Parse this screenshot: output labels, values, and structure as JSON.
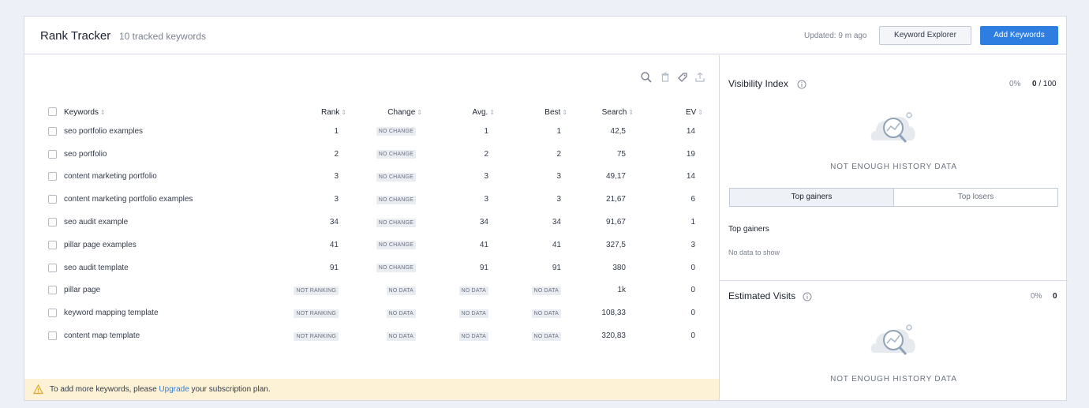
{
  "header": {
    "title": "Rank Tracker",
    "subtitle": "10 tracked keywords",
    "updated": "Updated: 9 m ago",
    "explorer_label": "Keyword Explorer",
    "add_label": "Add Keywords"
  },
  "toolbar": {
    "icons": [
      "search-icon",
      "trash-icon",
      "tag-icon",
      "export-icon"
    ]
  },
  "table": {
    "columns": [
      "Keywords",
      "Rank",
      "Change",
      "Avg.",
      "Best",
      "Search",
      "EV"
    ],
    "rows": [
      {
        "keyword": "seo portfolio examples",
        "rank": "1",
        "change": "NO CHANGE",
        "avg": "1",
        "best": "1",
        "search": "42,5",
        "ev": "14"
      },
      {
        "keyword": "seo portfolio",
        "rank": "2",
        "change": "NO CHANGE",
        "avg": "2",
        "best": "2",
        "search": "75",
        "ev": "19"
      },
      {
        "keyword": "content marketing portfolio",
        "rank": "3",
        "change": "NO CHANGE",
        "avg": "3",
        "best": "3",
        "search": "49,17",
        "ev": "14"
      },
      {
        "keyword": "content marketing portfolio examples",
        "rank": "3",
        "change": "NO CHANGE",
        "avg": "3",
        "best": "3",
        "search": "21,67",
        "ev": "6"
      },
      {
        "keyword": "seo audit example",
        "rank": "34",
        "change": "NO CHANGE",
        "avg": "34",
        "best": "34",
        "search": "91,67",
        "ev": "1"
      },
      {
        "keyword": "pillar page examples",
        "rank": "41",
        "change": "NO CHANGE",
        "avg": "41",
        "best": "41",
        "search": "327,5",
        "ev": "3"
      },
      {
        "keyword": "seo audit template",
        "rank": "91",
        "change": "NO CHANGE",
        "avg": "91",
        "best": "91",
        "search": "380",
        "ev": "0"
      },
      {
        "keyword": "pillar page",
        "rank": "NOT RANKING",
        "change": "NO DATA",
        "avg": "NO DATA",
        "best": "NO DATA",
        "search": "1k",
        "ev": "0"
      },
      {
        "keyword": "keyword mapping template",
        "rank": "NOT RANKING",
        "change": "NO DATA",
        "avg": "NO DATA",
        "best": "NO DATA",
        "search": "108,33",
        "ev": "0"
      },
      {
        "keyword": "content map template",
        "rank": "NOT RANKING",
        "change": "NO DATA",
        "avg": "NO DATA",
        "best": "NO DATA",
        "search": "320,83",
        "ev": "0"
      }
    ]
  },
  "notice": {
    "before": "To add more keywords, please ",
    "link": "Upgrade",
    "after": " your subscription plan."
  },
  "visibility": {
    "title": "Visibility Index",
    "pct": "0%",
    "value": "0",
    "max": " / 100",
    "empty_text": "NOT ENOUGH HISTORY DATA"
  },
  "movers": {
    "tab_gainers": "Top gainers",
    "tab_losers": "Top losers",
    "section_title": "Top gainers",
    "empty": "No data to show"
  },
  "visits": {
    "title": "Estimated Visits",
    "pct": "0%",
    "value": "0",
    "empty_text": "NOT ENOUGH HISTORY DATA"
  },
  "colors": {
    "accent": "#2e7de1",
    "notice_bg": "#fdf2d5",
    "tag_bg": "#e9ecf1"
  }
}
